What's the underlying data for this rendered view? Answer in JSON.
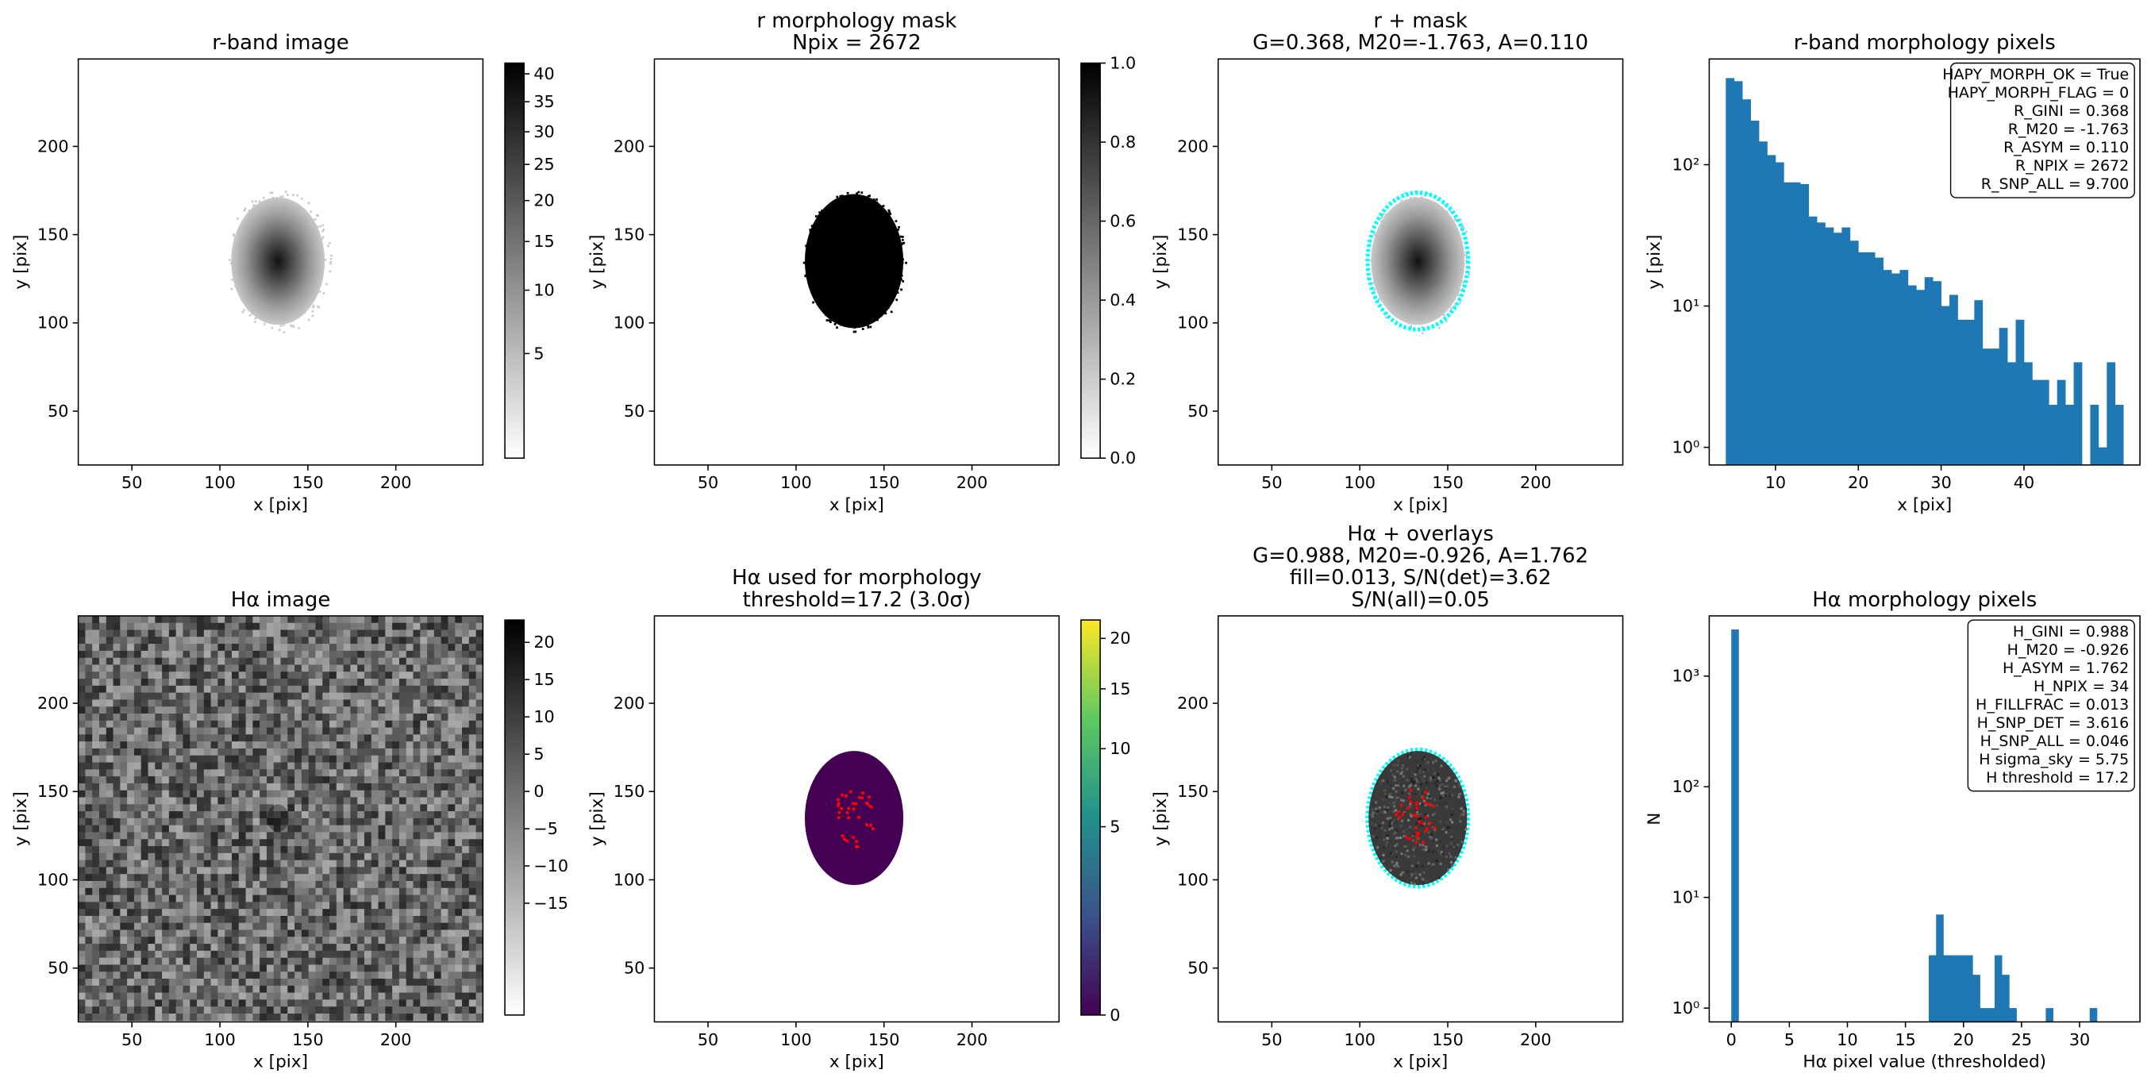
{
  "chart_data": [
    {
      "type": "image",
      "title": [
        "r-band image"
      ],
      "xlabel": "x [pix]",
      "ylabel": "y [pix]",
      "xlim": [
        19.5,
        249.5
      ],
      "ylim": [
        19.5,
        249.5
      ],
      "xticks": [
        50,
        100,
        150,
        200
      ],
      "yticks": [
        50,
        100,
        150,
        200
      ],
      "cmap": "gray_r",
      "colorbar": {
        "lim": [
          0.5,
          42
        ],
        "scale": "sqrt",
        "ticks": [
          5,
          10,
          15,
          20,
          25,
          30,
          35,
          40
        ]
      }
    },
    {
      "type": "image",
      "title": [
        "r morphology mask",
        "Npix = 2672"
      ],
      "xlabel": "x [pix]",
      "ylabel": "y [pix]",
      "xlim": [
        19.5,
        249.5
      ],
      "ylim": [
        19.5,
        249.5
      ],
      "xticks": [
        50,
        100,
        150,
        200
      ],
      "yticks": [
        50,
        100,
        150,
        200
      ],
      "cmap": "gray_r",
      "colorbar": {
        "lim": [
          0,
          1
        ],
        "scale": "linear",
        "ticks": [
          {
            "value": 0,
            "label": "0.0"
          },
          0.2,
          0.4,
          0.6,
          0.8,
          {
            "value": 1,
            "label": "1.0"
          }
        ]
      }
    },
    {
      "type": "image",
      "title": [
        "r + mask",
        "G=0.368, M20=-1.763, A=0.110"
      ],
      "xlabel": "x [pix]",
      "ylabel": "y [pix]",
      "xlim": [
        19.5,
        249.5
      ],
      "ylim": [
        19.5,
        249.5
      ],
      "xticks": [
        50,
        100,
        150,
        200
      ],
      "yticks": [
        50,
        100,
        150,
        200
      ],
      "cmap": "gray_r",
      "contour_color": "#00ffff"
    },
    {
      "type": "histogram",
      "title": [
        "r-band morphology pixels"
      ],
      "xlabel": "x [pix]",
      "ylabel": "y [pix]",
      "color": "#1f77b4",
      "yscale": "log",
      "bins": [
        4,
        5,
        6,
        7,
        8,
        9,
        10,
        11,
        12,
        13,
        14,
        15,
        16,
        17,
        18,
        19,
        20,
        21,
        22,
        23,
        24,
        25,
        26,
        27,
        28,
        29,
        30,
        31,
        32,
        33,
        34,
        35,
        36,
        37,
        38,
        39,
        40,
        41,
        42,
        43,
        44,
        45,
        46,
        47,
        48,
        49,
        50,
        51,
        52
      ],
      "counts": [
        410,
        390,
        290,
        205,
        146,
        117,
        104,
        75,
        75,
        73,
        43,
        39,
        36,
        33,
        36,
        29,
        24,
        24,
        22,
        18,
        17,
        18,
        14,
        13,
        16,
        15,
        10,
        12,
        8,
        8,
        11,
        5,
        5,
        7,
        4,
        8,
        4,
        3,
        3,
        2,
        3,
        2,
        4,
        0,
        2,
        1,
        4,
        2
      ],
      "xlim": [
        2,
        54
      ],
      "ylim": [
        0.75,
        560
      ],
      "xticks": [
        10,
        20,
        30,
        40
      ],
      "yticks": [
        {
          "value": 1,
          "label": "10⁰"
        },
        {
          "value": 10,
          "label": "10¹"
        },
        {
          "value": 100,
          "label": "10²"
        }
      ],
      "annotation": [
        "HAPY_MORPH_OK = True",
        "HAPY_MORPH_FLAG = 0",
        "R_GINI = 0.368",
        "R_M20 = -1.763",
        "R_ASYM = 0.110",
        "R_NPIX = 2672",
        "R_SNP_ALL = 9.700"
      ]
    },
    {
      "type": "image",
      "title": [
        "Hα image"
      ],
      "xlabel": "x [pix]",
      "ylabel": "y [pix]",
      "xlim": [
        19.5,
        249.5
      ],
      "ylim": [
        19.5,
        249.5
      ],
      "xticks": [
        50,
        100,
        150,
        200
      ],
      "yticks": [
        50,
        100,
        150,
        200
      ],
      "cmap": "gray_r",
      "colorbar": {
        "lim": [
          -30,
          23
        ],
        "scale": "linear",
        "ticks": [
          {
            "value": -15,
            "label": "−15"
          },
          {
            "value": -10,
            "label": "−10"
          },
          {
            "value": -5,
            "label": "−5"
          },
          0,
          5,
          10,
          15,
          20
        ]
      }
    },
    {
      "type": "image",
      "title": [
        "Hα used for morphology",
        "threshold=17.2 (3.0σ)"
      ],
      "xlabel": "x [pix]",
      "ylabel": "y [pix]",
      "xlim": [
        19.5,
        249.5
      ],
      "ylim": [
        19.5,
        249.5
      ],
      "xticks": [
        50,
        100,
        150,
        200
      ],
      "yticks": [
        50,
        100,
        150,
        200
      ],
      "cmap": "viridis",
      "points_color": "#ff0000",
      "colorbar": {
        "lim": [
          0,
          22
        ],
        "scale": "sqrt",
        "ticks": [
          0,
          5,
          10,
          15,
          20
        ]
      }
    },
    {
      "type": "image",
      "title": [
        "Hα + overlays",
        "G=0.988, M20=-0.926, A=1.762",
        "fill=0.013, S/N(det)=3.62",
        "S/N(all)=0.05"
      ],
      "xlabel": "x [pix]",
      "ylabel": "y [pix]",
      "xlim": [
        19.5,
        249.5
      ],
      "ylim": [
        19.5,
        249.5
      ],
      "xticks": [
        50,
        100,
        150,
        200
      ],
      "yticks": [
        50,
        100,
        150,
        200
      ],
      "cmap": "gray_r",
      "contour_color": "#00ffff",
      "points_color": "#ff0000"
    },
    {
      "type": "histogram",
      "title": [
        "Hα morphology pixels"
      ],
      "xlabel": "Hα pixel value (thresholded)",
      "ylabel": "N",
      "color": "#1f77b4",
      "yscale": "log",
      "bins": [
        0,
        0.63,
        1.26,
        1.89,
        2.52,
        3.15,
        3.78,
        4.41,
        5.04,
        5.67,
        6.3,
        6.93,
        7.56,
        8.19,
        8.82,
        9.45,
        10.08,
        10.71,
        11.34,
        11.97,
        12.6,
        13.23,
        13.86,
        14.49,
        15.12,
        15.75,
        16.38,
        17.01,
        17.64,
        18.27,
        18.9,
        19.53,
        20.16,
        20.79,
        21.42,
        22.05,
        22.68,
        23.31,
        23.94,
        24.57,
        25.2,
        25.83,
        26.46,
        27.09,
        27.72,
        28.35,
        28.98,
        29.61,
        30.24,
        30.87,
        31.5
      ],
      "counts": [
        2638,
        0,
        0,
        0,
        0,
        0,
        0,
        0,
        0,
        0,
        0,
        0,
        0,
        0,
        0,
        0,
        0,
        0,
        0,
        0,
        0,
        0,
        0,
        0,
        0,
        0,
        0,
        3,
        7,
        3,
        3,
        3,
        3,
        2,
        1,
        1,
        3,
        2,
        1,
        0,
        0,
        0,
        0,
        1,
        0,
        0,
        0,
        0,
        0,
        1
      ],
      "xlim": [
        -1.9,
        35.2
      ],
      "ylim": [
        0.75,
        3500
      ],
      "xticks": [
        0,
        5,
        10,
        15,
        20,
        25,
        30
      ],
      "yticks": [
        {
          "value": 1,
          "label": "10⁰"
        },
        {
          "value": 10,
          "label": "10¹"
        },
        {
          "value": 100,
          "label": "10²"
        },
        {
          "value": 1000,
          "label": "10³"
        }
      ],
      "annotation": [
        "H_GINI = 0.988",
        "H_M20 = -0.926",
        "H_ASYM = 1.762",
        "H_NPIX = 34",
        "H_FILLFRAC = 0.013",
        "H_SNP_DET = 3.616",
        "H_SNP_ALL = 0.046",
        "H sigma_sky = 5.75",
        "H threshold = 17.2"
      ]
    }
  ]
}
